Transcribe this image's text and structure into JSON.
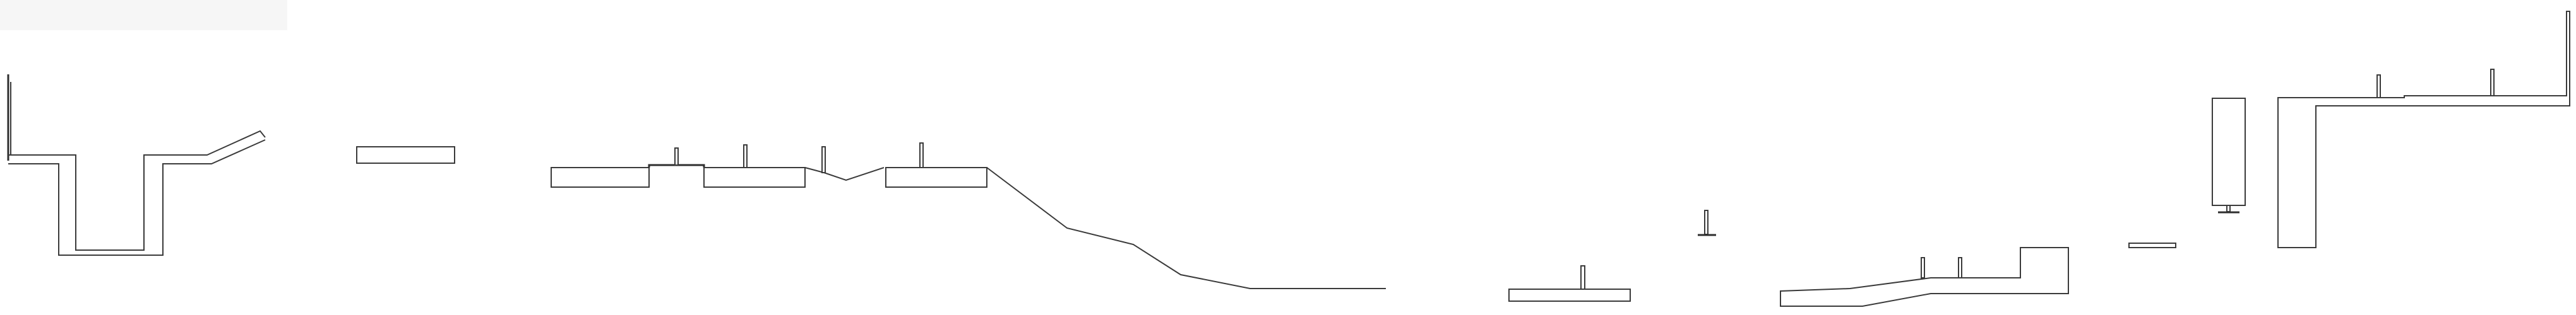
{
  "drawing": {
    "background": "#ffffff",
    "line_color": "#3a3a3a",
    "label_tab_color": "#f6f6f6"
  }
}
